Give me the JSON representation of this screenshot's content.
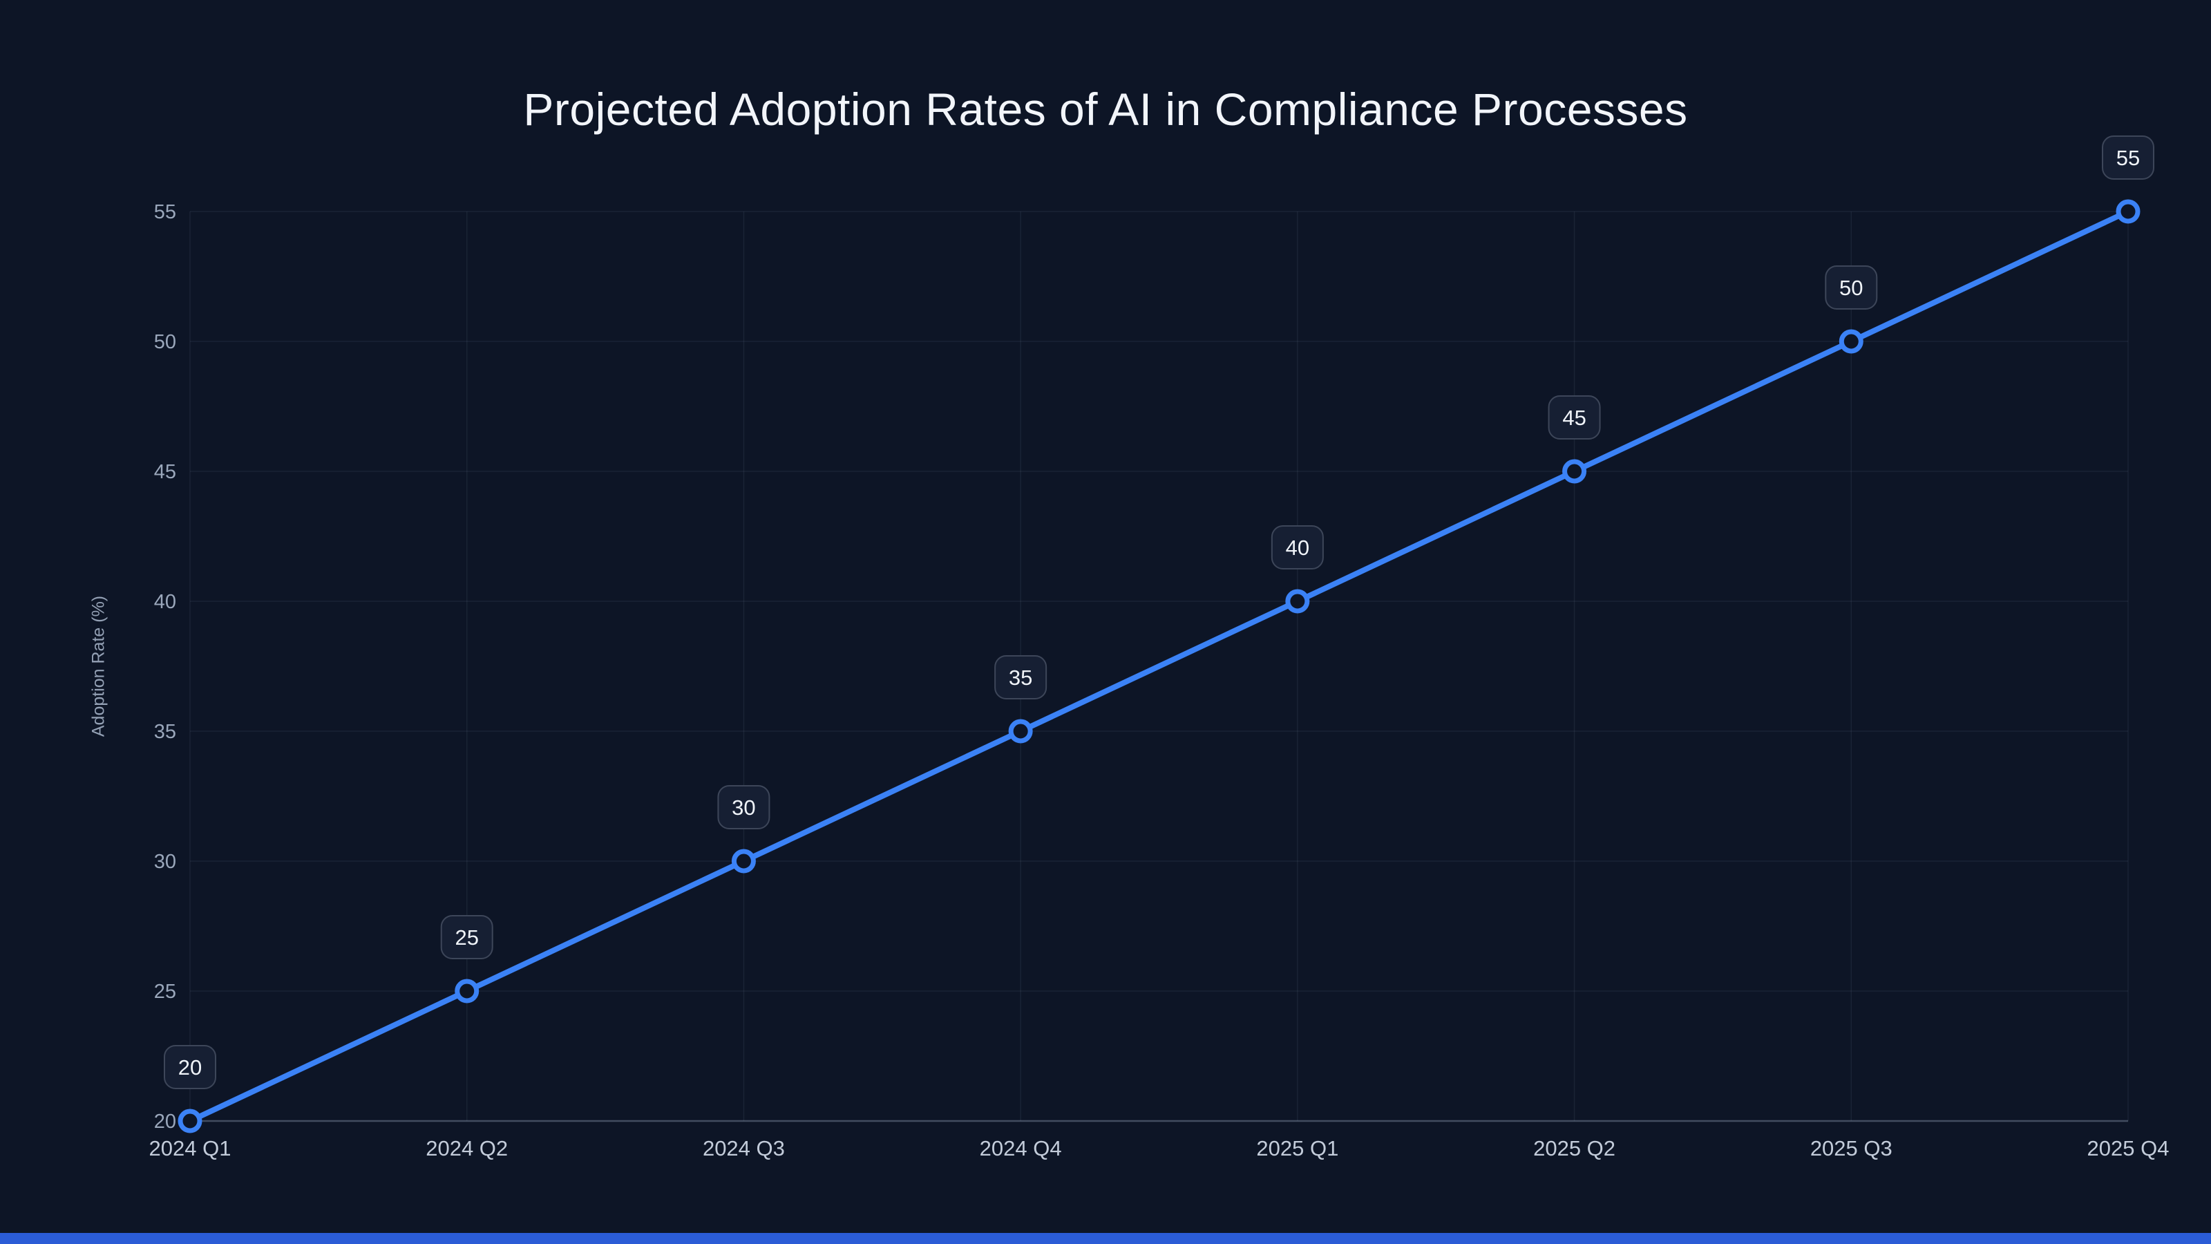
{
  "page": {
    "background": "#0d1526",
    "accent": "#3b82f6"
  },
  "chart_data": {
    "type": "line",
    "title": "Projected Adoption Rates of AI in Compliance Processes",
    "xlabel": "",
    "ylabel": "Adoption Rate (%)",
    "categories": [
      "2024 Q1",
      "2024 Q2",
      "2024 Q3",
      "2024 Q4",
      "2025 Q1",
      "2025 Q2",
      "2025 Q3",
      "2025 Q4"
    ],
    "series": [
      {
        "name": "Adoption Rate",
        "values": [
          20,
          25,
          30,
          35,
          40,
          45,
          50,
          55
        ]
      }
    ],
    "data_labels": [
      "20",
      "25",
      "30",
      "35",
      "40",
      "45",
      "50",
      "55"
    ],
    "ylim": [
      20,
      55
    ],
    "yticks": [
      20,
      25,
      30,
      35,
      40,
      45,
      50,
      55
    ],
    "grid": true,
    "legend_position": "none",
    "colors": {
      "line": "#3b82f6",
      "marker_fill": "#0d1526",
      "label_box_bg": "#161f33",
      "label_box_border": "#3d4659",
      "label_text": "#f0f4f9",
      "grid": "rgba(148,163,184,0.10)",
      "axis": "rgba(148,163,184,0.40)",
      "y_tick_text": "#9aa7bb",
      "x_tick_text": "#c3ccda",
      "title_text": "#f2f5fa"
    }
  }
}
